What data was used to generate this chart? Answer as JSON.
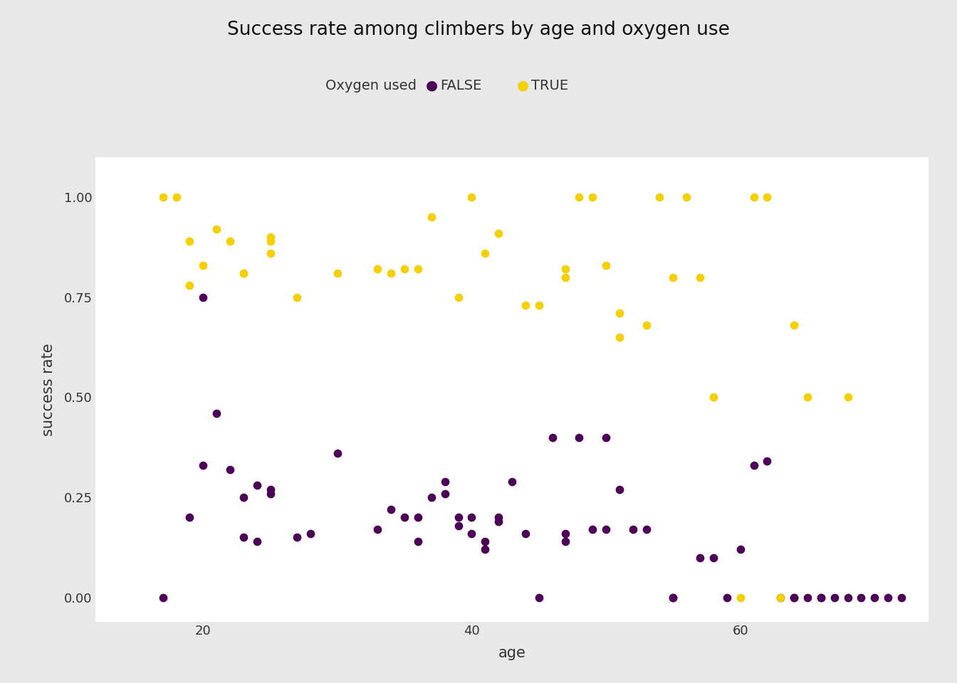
{
  "title": "Success rate among climbers by age and oxygen use",
  "xlabel": "age",
  "ylabel": "success rate",
  "legend_title": "Oxygen used",
  "legend_labels": [
    "FALSE",
    "TRUE"
  ],
  "colors": {
    "FALSE": "#4B0055",
    "TRUE": "#F5D000"
  },
  "background_color": "#E8E8E8",
  "plot_background": "#FFFFFF",
  "false_points": [
    [
      17,
      0.0
    ],
    [
      19,
      0.2
    ],
    [
      20,
      0.33
    ],
    [
      20,
      0.75
    ],
    [
      21,
      0.46
    ],
    [
      22,
      0.32
    ],
    [
      23,
      0.25
    ],
    [
      23,
      0.15
    ],
    [
      24,
      0.28
    ],
    [
      24,
      0.14
    ],
    [
      25,
      0.27
    ],
    [
      25,
      0.26
    ],
    [
      27,
      0.15
    ],
    [
      28,
      0.16
    ],
    [
      30,
      0.36
    ],
    [
      33,
      0.17
    ],
    [
      34,
      0.22
    ],
    [
      35,
      0.2
    ],
    [
      36,
      0.2
    ],
    [
      36,
      0.14
    ],
    [
      37,
      0.25
    ],
    [
      38,
      0.26
    ],
    [
      38,
      0.29
    ],
    [
      39,
      0.2
    ],
    [
      39,
      0.18
    ],
    [
      40,
      0.2
    ],
    [
      40,
      0.16
    ],
    [
      41,
      0.14
    ],
    [
      41,
      0.12
    ],
    [
      42,
      0.19
    ],
    [
      42,
      0.2
    ],
    [
      43,
      0.29
    ],
    [
      44,
      0.16
    ],
    [
      45,
      0.0
    ],
    [
      46,
      0.4
    ],
    [
      47,
      0.14
    ],
    [
      47,
      0.16
    ],
    [
      48,
      0.4
    ],
    [
      49,
      0.17
    ],
    [
      50,
      0.4
    ],
    [
      50,
      0.17
    ],
    [
      51,
      0.27
    ],
    [
      52,
      0.17
    ],
    [
      53,
      0.17
    ],
    [
      55,
      0.0
    ],
    [
      55,
      0.0
    ],
    [
      57,
      0.1
    ],
    [
      58,
      0.1
    ],
    [
      59,
      0.0
    ],
    [
      60,
      0.12
    ],
    [
      61,
      0.33
    ],
    [
      62,
      0.34
    ],
    [
      63,
      0.0
    ],
    [
      64,
      0.0
    ],
    [
      64,
      0.0
    ],
    [
      65,
      0.0
    ],
    [
      66,
      0.0
    ],
    [
      66,
      0.0
    ],
    [
      67,
      0.0
    ],
    [
      68,
      0.0
    ],
    [
      69,
      0.0
    ],
    [
      70,
      0.0
    ],
    [
      71,
      0.0
    ],
    [
      72,
      0.0
    ]
  ],
  "true_points": [
    [
      17,
      1.0
    ],
    [
      18,
      1.0
    ],
    [
      19,
      0.89
    ],
    [
      19,
      0.78
    ],
    [
      20,
      0.83
    ],
    [
      21,
      0.92
    ],
    [
      22,
      0.89
    ],
    [
      23,
      0.81
    ],
    [
      23,
      0.81
    ],
    [
      25,
      0.86
    ],
    [
      25,
      0.9
    ],
    [
      25,
      0.89
    ],
    [
      27,
      0.75
    ],
    [
      30,
      0.81
    ],
    [
      33,
      0.82
    ],
    [
      34,
      0.81
    ],
    [
      35,
      0.82
    ],
    [
      36,
      0.82
    ],
    [
      37,
      0.95
    ],
    [
      39,
      0.75
    ],
    [
      40,
      1.0
    ],
    [
      41,
      0.86
    ],
    [
      42,
      0.91
    ],
    [
      44,
      0.73
    ],
    [
      45,
      0.73
    ],
    [
      47,
      0.82
    ],
    [
      47,
      0.8
    ],
    [
      48,
      1.0
    ],
    [
      49,
      1.0
    ],
    [
      50,
      0.83
    ],
    [
      51,
      0.71
    ],
    [
      51,
      0.65
    ],
    [
      53,
      0.68
    ],
    [
      54,
      1.0
    ],
    [
      55,
      0.8
    ],
    [
      56,
      1.0
    ],
    [
      57,
      0.8
    ],
    [
      58,
      0.5
    ],
    [
      60,
      0.0
    ],
    [
      61,
      1.0
    ],
    [
      62,
      1.0
    ],
    [
      63,
      0.0
    ],
    [
      64,
      0.68
    ],
    [
      65,
      0.5
    ],
    [
      68,
      0.5
    ]
  ],
  "xlim": [
    12,
    74
  ],
  "ylim": [
    -0.06,
    1.1
  ],
  "xticks": [
    20,
    40,
    60
  ],
  "yticks": [
    0.0,
    0.25,
    0.5,
    0.75,
    1.0
  ]
}
